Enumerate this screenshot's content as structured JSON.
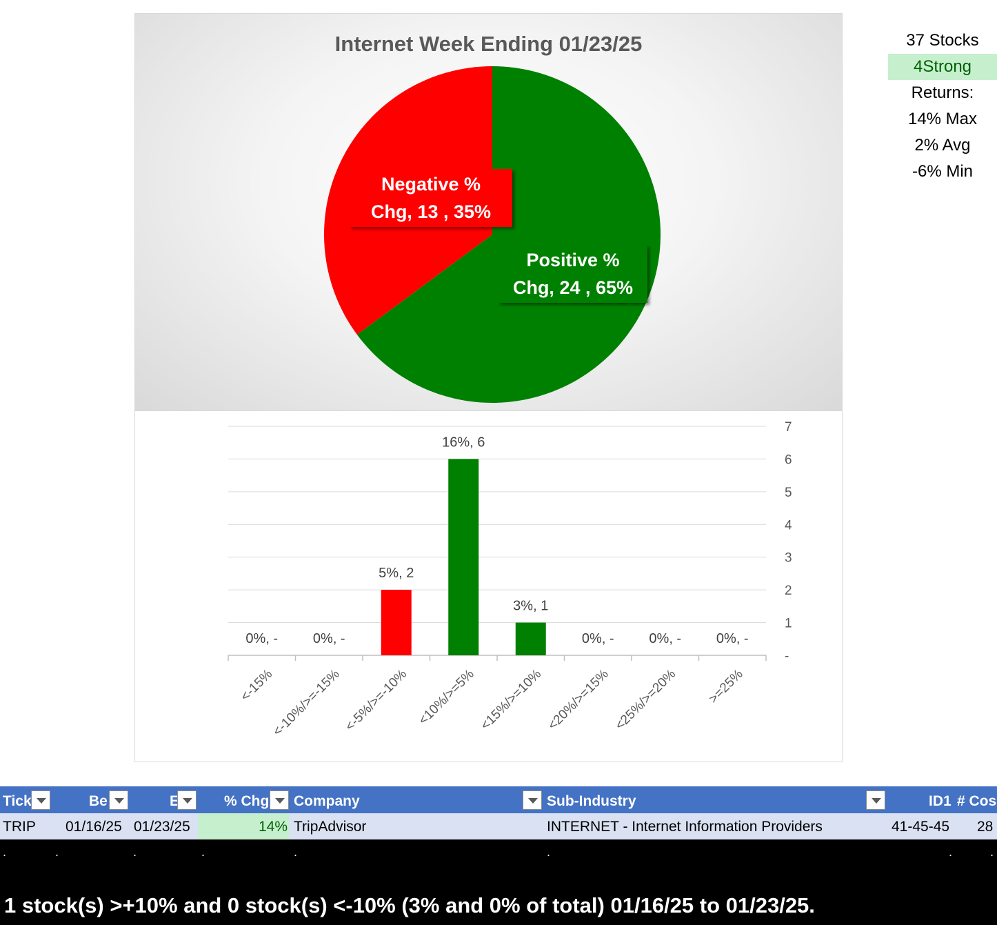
{
  "chart_data": [
    {
      "type": "pie",
      "title": "Internet Week Ending 01/23/25",
      "slices": [
        {
          "name": "Positive % Chg",
          "line1": "Positive %",
          "line2": "Chg,  24 , 65%",
          "count": 24,
          "percent": 65,
          "color": "#008000"
        },
        {
          "name": "Negative % Chg",
          "line1": "Negative %",
          "line2": "Chg,  13 , 35%",
          "count": 13,
          "percent": 35,
          "color": "#ff0000"
        }
      ]
    },
    {
      "type": "bar",
      "categories": [
        "<-15%",
        "<-10%/>=-15%",
        "<-5%/>=-10%",
        "<10%/>=5%",
        "<15%/>=10%",
        "<20%/>=15%",
        "<25%/>=20%",
        ">=25%"
      ],
      "values": [
        0,
        0,
        2,
        6,
        1,
        0,
        0,
        0
      ],
      "data_labels": [
        "0%,  -",
        "0%,  -",
        "5%,  2",
        "16%,  6",
        "3%,  1",
        "0%,  -",
        "0%,  -",
        "0%,  -"
      ],
      "colors": [
        "#ff0000",
        "#ff0000",
        "#ff0000",
        "#008000",
        "#008000",
        "#008000",
        "#008000",
        "#008000"
      ],
      "y_ticks": [
        "-",
        "1",
        "2",
        "3",
        "4",
        "5",
        "6",
        "7"
      ],
      "ylim": [
        0,
        7
      ],
      "y_axis_side": "right",
      "grid": true
    }
  ],
  "stats": {
    "stocks": "37 Stocks",
    "strong": "4Strong",
    "returns": "Returns:",
    "max": "14% Max",
    "avg": "2% Avg",
    "min": "-6% Min"
  },
  "table": {
    "headers": [
      "Tick",
      "Be",
      "E",
      "% Chg",
      "Company",
      "Sub-Industry",
      "ID1",
      "# Cos"
    ],
    "row": [
      "TRIP",
      "01/16/25",
      "01/23/25",
      "14%",
      "TripAdvisor",
      "INTERNET - Internet Information Providers",
      "41-45-45",
      "28"
    ]
  },
  "summary": "1 stock(s) >+10% and 0 stock(s) <-10% (3% and 0% of total) 01/16/25 to 01/23/25."
}
